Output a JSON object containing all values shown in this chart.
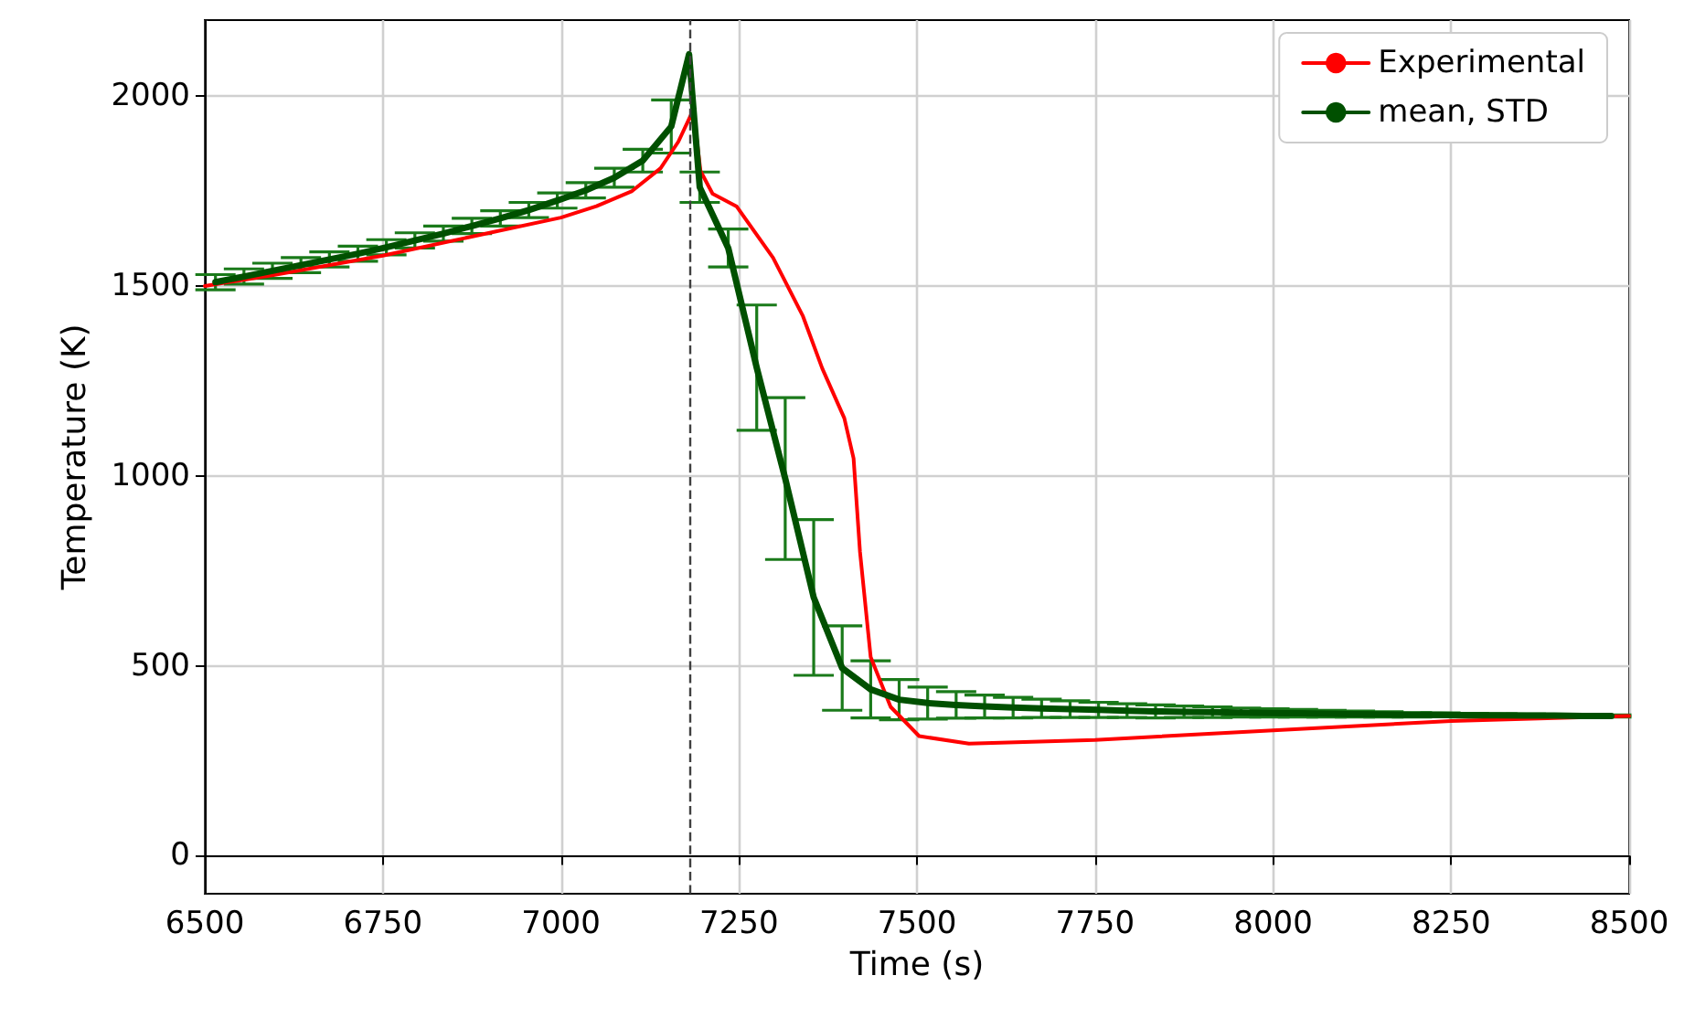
{
  "chart_data": {
    "type": "line",
    "xlabel": "Time (s)",
    "ylabel": "Temperature (K)",
    "xlim": [
      6500,
      8500
    ],
    "xticks": [
      6500,
      6750,
      7000,
      7250,
      7500,
      7750,
      8000,
      8250,
      8500
    ],
    "ylim": [
      -100,
      2200
    ],
    "yticks": [
      0,
      500,
      1000,
      1500,
      2000
    ],
    "grid": true,
    "legend": "top right",
    "ref_lines": [
      {
        "axis": "x",
        "value": 7180,
        "label": null,
        "color": "#404040",
        "line_style": "dashed"
      }
    ],
    "series": [
      {
        "name": "Experimental",
        "color": "#ff0000",
        "x": [
          6500,
          6600,
          6750,
          6900,
          7000,
          7050,
          7100,
          7140,
          7165,
          7183,
          7190,
          7196,
          7213,
          7247,
          7298,
          7340,
          7367,
          7398,
          7411,
          7420,
          7435,
          7463,
          7503,
          7573,
          7750,
          8000,
          8250,
          8500
        ],
        "values": [
          1500,
          1530,
          1580,
          1640,
          1680,
          1710,
          1750,
          1810,
          1880,
          1952,
          1900,
          1803,
          1743,
          1709,
          1574,
          1420,
          1283,
          1152,
          1046,
          800,
          523,
          392,
          315,
          295,
          305,
          330,
          355,
          368
        ]
      },
      {
        "name": "mean, STD",
        "color": "#005000",
        "x": [
          6515,
          6555,
          6595,
          6635,
          6675,
          6715,
          6755,
          6795,
          6835,
          6875,
          6915,
          6955,
          6995,
          7035,
          7075,
          7115,
          7155,
          7180,
          7195,
          7235,
          7275,
          7315,
          7355,
          7395,
          7435,
          7475,
          7515,
          7555,
          7595,
          7635,
          7675,
          7715,
          7755,
          7795,
          7835,
          7875,
          7915,
          7955,
          7995,
          8035,
          8075,
          8115,
          8155,
          8195,
          8235,
          8275,
          8315,
          8355,
          8395,
          8435,
          8475
        ],
        "values": [
          1510,
          1525,
          1540,
          1555,
          1570,
          1585,
          1602,
          1620,
          1638,
          1658,
          1678,
          1700,
          1725,
          1752,
          1785,
          1830,
          1920,
          2110,
          1760,
          1600,
          1285,
          993,
          680,
          494,
          438,
          411,
          402,
          397,
          393,
          390,
          388,
          386,
          384,
          382,
          380,
          379,
          378,
          377,
          376,
          375,
          374,
          373,
          372,
          371,
          371,
          370,
          370,
          369,
          369,
          368,
          368
        ],
        "errors": [
          20,
          20,
          20,
          20,
          20,
          20,
          20,
          20,
          20,
          20,
          20,
          20,
          20,
          20,
          25,
          30,
          70,
          null,
          40,
          50,
          165,
          213,
          205,
          111,
          75,
          53,
          42,
          35,
          30,
          27,
          24,
          22,
          20,
          18,
          17,
          15,
          14,
          12,
          11,
          10,
          9,
          8,
          7,
          6,
          5,
          5,
          4,
          4,
          3,
          3,
          3
        ]
      }
    ]
  }
}
